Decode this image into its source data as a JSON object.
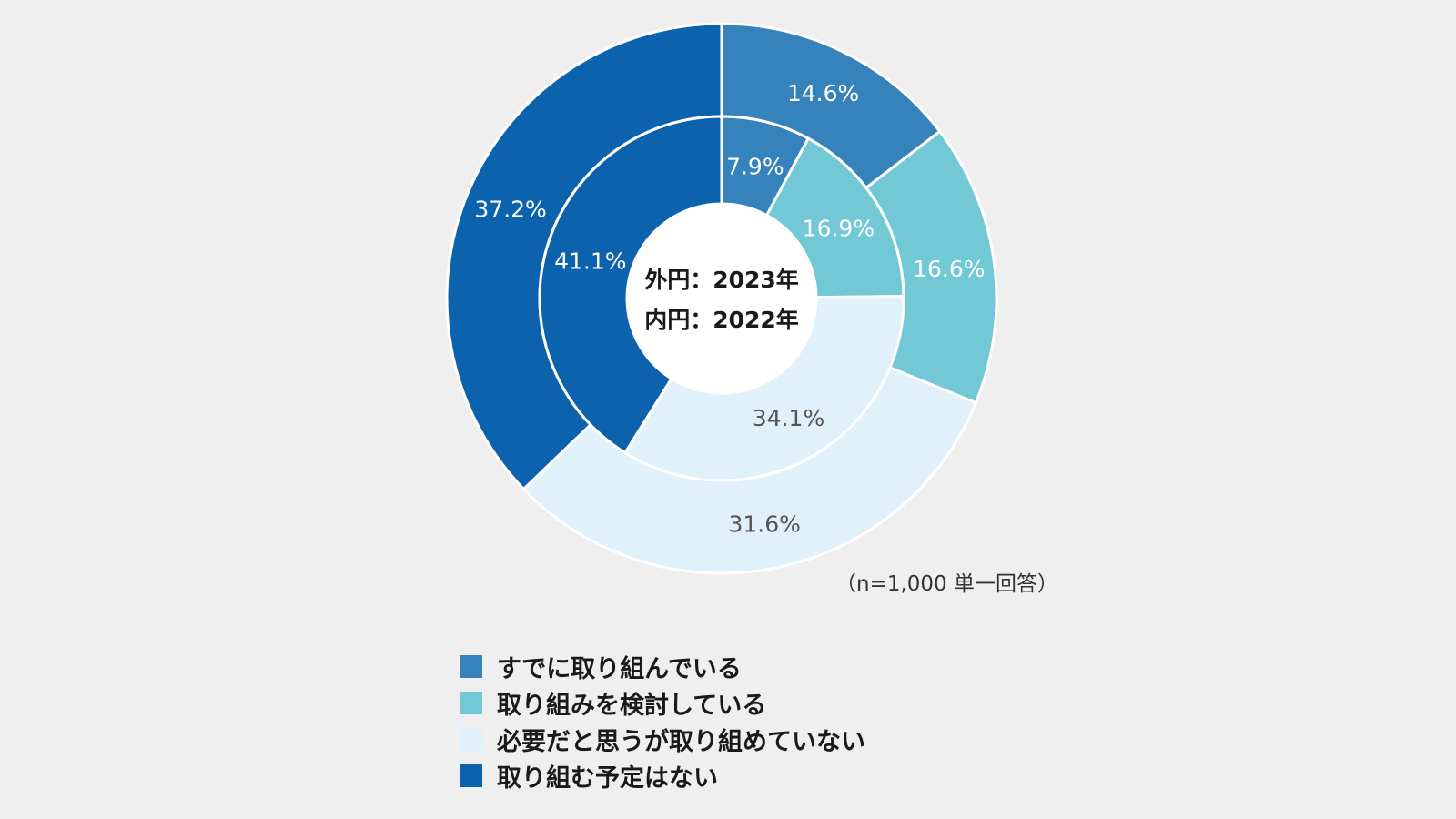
{
  "chart_data": {
    "type": "donut",
    "center_labels": [
      "外円：2023年",
      "内円：2022年"
    ],
    "note": "（n=1,000 単一回答）",
    "categories": [
      "すでに取り組んでいる",
      "取り組みを検討している",
      "必要だと思うが取り組めていない",
      "取り組む予定はない"
    ],
    "colors": [
      "#3683bb",
      "#72c9d5",
      "#e1f1fb",
      "#0d62ad"
    ],
    "series": [
      {
        "name": "2023年",
        "ring": "outer",
        "values": [
          14.6,
          16.6,
          31.6,
          37.2
        ],
        "labels": [
          "14.6%",
          "16.6%",
          "31.6%",
          "37.2%"
        ]
      },
      {
        "name": "2022年",
        "ring": "inner",
        "values": [
          7.9,
          16.9,
          34.1,
          41.1
        ],
        "labels": [
          "7.9%",
          "16.9%",
          "34.1%",
          "41.1%"
        ]
      }
    ],
    "legend_position": "bottom"
  }
}
